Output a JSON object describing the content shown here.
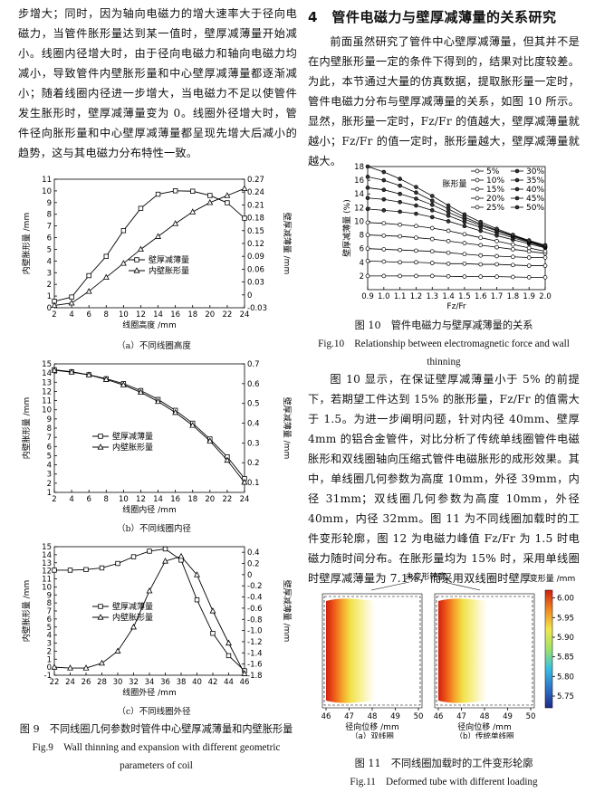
{
  "left": {
    "intro_paragraph": "步增大；同时，因为轴向电磁力的增大速率大于径向电磁力，当管件胀形量达到某一值时，壁厚减薄量开始减小。线圈内径增大时，由于径向电磁力和轴向电磁力均减小，导致管件内壁胀形量和中心壁厚减薄量都逐渐减小；随着线圈内径进一步增大，当电磁力不足以使管件发生胀形时，壁厚减薄量变为 0。线圈外径增大时，管件径向胀形量和中心壁厚减薄量都呈现先增大后减小的趋势，这与其电磁力分布特性一致。",
    "sub_a": "（a）不同线圈高度",
    "sub_b": "（b）不同线圈内径",
    "sub_c": "（c）不同线圈外径",
    "fig9_cn": "图 9　不同线圈几何参数时管件中心壁厚减薄量和内壁胀形量",
    "fig9_en": "Fig.9　Wall thinning and expansion with different geometric parameters of coil"
  },
  "right": {
    "section_title": "4　管件电磁力与壁厚减薄量的关系研究",
    "para1": "前面虽然研究了管件中心壁厚减薄量，但其并不是在内壁胀形量一定的条件下得到的，结果对比度较差。为此，本节通过大量的仿真数据，提取胀形量一定时，管件电磁力分布与壁厚减薄量的关系，如图 10 所示。显然，胀形量一定时，Fz/Fr 的值越大，壁厚减薄量就越小；Fz/Fr 的值一定时，胀形量越大，壁厚减薄量就越大。",
    "fig10_cn": "图 10　管件电磁力与壁厚减薄量的关系",
    "fig10_en": "Fig.10　Relationship between electromagnetic force and wall thinning",
    "para2": "图 10 显示，在保证壁厚减薄量小于 5% 的前提下，若期望工件达到 15% 的胀形量，Fz/Fr 的值需大于 1.5。为进一步阐明问题，针对内径 40mm、壁厚 4mm 的铝合金管件，对比分析了传统单线圈管件电磁胀形和双线圈轴向压缩式管件电磁胀形的成形效果。其中，单线圈几何参数为高度 10mm，外径 39mm，内径 31mm；双线圈几何参数为高度 10mm，外径 40mm，内径 32mm。图 11 为不同线圈加载时的工件变形轮廓，图 12 为电磁力峰值 Fz/Fr 为 1.5 时电磁力随时间分布。在胀形量均为 15% 时，采用单线圈时壁厚减薄量为 7.1%，而采用双线圈时壁厚",
    "fig11_top_label": "未变形轮廓",
    "fig11_colorbar_title": "变形量 /mm",
    "fig11_colorbar_ticks": [
      "6.00",
      "5.95",
      "5.90",
      "5.85",
      "5.80",
      "5.75"
    ],
    "fig11_x_ticks": [
      "46",
      "47",
      "48",
      "49",
      "50"
    ],
    "fig11_xlabel": "径向位移 /mm",
    "fig11_sub_a": "（a）双线圈",
    "fig11_sub_b": "（b）传统单线圈",
    "fig11_cn": "图 11　不同线圈加载时的工件变形轮廓",
    "fig11_en": "Fig.11　Deformed tube with different loading"
  },
  "chart_data": [
    {
      "type": "line",
      "id": "fig9a",
      "xlabel": "线圈高度 /mm",
      "ylabel": "内壁胀形量 /mm",
      "y2label": "壁厚减薄量 /mm",
      "xlim": [
        2,
        24
      ],
      "ylim": [
        0,
        11
      ],
      "y2lim": [
        -0.03,
        0.27
      ],
      "xticks": [
        2,
        4,
        6,
        8,
        10,
        12,
        14,
        16,
        18,
        20,
        22,
        24
      ],
      "yticks": [
        0,
        1,
        2,
        3,
        4,
        5,
        6,
        7,
        8,
        9,
        10,
        11
      ],
      "y2ticks": [
        "0.27",
        "0.24",
        "0.21",
        "0.18",
        "0.15",
        "0.12",
        "0.09",
        "0.06",
        "0.03",
        "0",
        "-0.03"
      ],
      "legend_loc": "center-right",
      "series": [
        {
          "name": "壁厚减薄量",
          "marker": "square",
          "axis": "y2",
          "x": [
            2,
            4,
            6,
            8,
            10,
            12,
            14,
            16,
            18,
            20,
            22,
            24
          ],
          "values": [
            -0.015,
            -0.005,
            0.045,
            0.09,
            0.15,
            0.202,
            0.235,
            0.243,
            0.242,
            0.232,
            0.215,
            0.179
          ]
        },
        {
          "name": "内壁胀形量",
          "marker": "triangle",
          "axis": "y",
          "x": [
            2,
            4,
            6,
            8,
            10,
            12,
            14,
            16,
            18,
            20,
            22,
            24
          ],
          "values": [
            0.2,
            0.4,
            1.4,
            2.6,
            3.8,
            5.0,
            6.1,
            7.2,
            8.2,
            9.0,
            9.6,
            10.2
          ]
        }
      ]
    },
    {
      "type": "line",
      "id": "fig9b",
      "xlabel": "线圈内径 /mm",
      "ylabel": "内壁胀形量 /mm",
      "y2label": "壁厚减薄量 /mm",
      "xlim": [
        2,
        24
      ],
      "ylim": [
        1,
        15
      ],
      "y2lim": [
        0.05,
        0.7
      ],
      "xticks": [
        2,
        4,
        6,
        8,
        10,
        12,
        14,
        16,
        18,
        20,
        22,
        24
      ],
      "yticks": [
        1,
        2,
        3,
        4,
        5,
        6,
        7,
        8,
        9,
        10,
        11,
        12,
        13,
        14,
        15
      ],
      "y2ticks": [
        "0.7",
        "0.6",
        "0.5",
        "0.4",
        "0.3",
        "0.2",
        "0.1"
      ],
      "legend_loc": "center-left",
      "series": [
        {
          "name": "壁厚减薄量",
          "marker": "square",
          "axis": "y2",
          "x": [
            2,
            4,
            6,
            8,
            10,
            12,
            14,
            16,
            18,
            20,
            22,
            24
          ],
          "values": [
            0.67,
            0.66,
            0.645,
            0.625,
            0.6,
            0.565,
            0.52,
            0.465,
            0.4,
            0.32,
            0.23,
            0.12
          ]
        },
        {
          "name": "内壁胀形量",
          "marker": "triangle",
          "axis": "y",
          "x": [
            2,
            4,
            6,
            8,
            10,
            12,
            14,
            16,
            18,
            20,
            22,
            24
          ],
          "values": [
            14.3,
            14.1,
            13.8,
            13.3,
            12.7,
            11.9,
            10.9,
            9.7,
            8.3,
            6.6,
            4.5,
            2.1
          ]
        }
      ]
    },
    {
      "type": "line",
      "id": "fig9c",
      "xlabel": "线圈外径 /mm",
      "ylabel": "内壁胀形量 /mm",
      "y2label": "壁厚减薄量 /mm",
      "xlim": [
        22,
        46
      ],
      "ylim": [
        -1,
        15
      ],
      "y2lim": [
        -1.8,
        0.5
      ],
      "xticks": [
        22,
        24,
        26,
        28,
        30,
        32,
        34,
        36,
        38,
        40,
        42,
        44,
        46
      ],
      "yticks": [
        -1,
        0,
        1,
        2,
        3,
        4,
        5,
        6,
        7,
        8,
        9,
        10,
        11,
        12,
        13,
        14,
        15
      ],
      "y2ticks": [
        "0.4",
        "0.2",
        "0",
        "-0.2",
        "-0.4",
        "-0.6",
        "-0.8",
        "-1.0",
        "-1.2",
        "-1.4",
        "-1.6",
        "-1.8"
      ],
      "legend_loc": "center-left",
      "series": [
        {
          "name": "壁厚减薄量",
          "marker": "square",
          "axis": "y2",
          "x": [
            22,
            24,
            26,
            28,
            30,
            32,
            34,
            36,
            38,
            40,
            42,
            44,
            46
          ],
          "values": [
            0.08,
            0.08,
            0.09,
            0.12,
            0.2,
            0.32,
            0.42,
            0.46,
            0.26,
            -0.45,
            -1.05,
            -1.45,
            -1.72
          ]
        },
        {
          "name": "内壁胀形量",
          "marker": "triangle",
          "axis": "y",
          "x": [
            22,
            24,
            26,
            28,
            30,
            32,
            34,
            36,
            38,
            40,
            42,
            44,
            46
          ],
          "values": [
            0.0,
            -0.1,
            -0.1,
            0.5,
            2.0,
            5.0,
            9.5,
            13.2,
            13.8,
            11.5,
            7.0,
            3.0,
            -0.8
          ]
        }
      ]
    },
    {
      "type": "line",
      "id": "fig10",
      "xlabel": "Fz/Fr",
      "ylabel": "壁厚减薄量 (%)",
      "legend_title": "胀形量",
      "xlim": [
        0.9,
        2.0
      ],
      "ylim": [
        0,
        18
      ],
      "xticks": [
        "0.9",
        "1.0",
        "1.1",
        "1.2",
        "1.3",
        "1.4",
        "1.5",
        "1.6",
        "1.7",
        "1.8",
        "1.9",
        "2.0"
      ],
      "yticks": [
        2,
        4,
        6,
        8,
        10,
        12,
        14,
        16,
        18
      ],
      "legend_loc": "top-right",
      "x": [
        0.9,
        1.0,
        1.1,
        1.2,
        1.3,
        1.4,
        1.5,
        1.6,
        1.7,
        1.8,
        1.9,
        2.0
      ],
      "series": [
        {
          "name": "5%",
          "marker": "circle-open",
          "values": [
            2.0,
            2.0,
            2.0,
            2.0,
            2.0,
            1.95,
            1.9,
            1.9,
            1.9,
            1.85,
            1.8,
            1.8
          ]
        },
        {
          "name": "10%",
          "marker": "circle-open",
          "values": [
            4.2,
            4.1,
            4.0,
            4.0,
            3.9,
            3.8,
            3.8,
            3.7,
            3.7,
            3.6,
            3.5,
            3.5
          ]
        },
        {
          "name": "15%",
          "marker": "circle-open",
          "values": [
            6.0,
            5.9,
            5.8,
            5.7,
            5.6,
            5.4,
            5.2,
            5.0,
            4.9,
            4.8,
            4.7,
            4.7
          ]
        },
        {
          "name": "20%",
          "marker": "circle-open",
          "values": [
            8.0,
            7.9,
            7.8,
            7.6,
            7.4,
            7.1,
            6.8,
            6.5,
            6.2,
            5.9,
            5.6,
            5.3
          ]
        },
        {
          "name": "25%",
          "marker": "circle-open",
          "values": [
            9.8,
            9.7,
            9.5,
            9.3,
            9.0,
            8.6,
            8.1,
            7.6,
            7.1,
            6.6,
            6.1,
            5.6
          ]
        },
        {
          "name": "30%",
          "marker": "circle-filled",
          "values": [
            11.8,
            11.6,
            11.4,
            11.1,
            10.6,
            10.0,
            9.3,
            8.6,
            7.9,
            7.3,
            6.7,
            6.1
          ]
        },
        {
          "name": "35%",
          "marker": "circle-filled",
          "values": [
            13.4,
            13.2,
            12.8,
            12.3,
            11.6,
            10.8,
            9.9,
            9.1,
            8.3,
            7.6,
            6.9,
            6.2
          ]
        },
        {
          "name": "40%",
          "marker": "circle-filled",
          "values": [
            14.9,
            14.6,
            14.0,
            13.3,
            12.4,
            11.3,
            10.3,
            9.4,
            8.6,
            7.8,
            7.0,
            6.3
          ]
        },
        {
          "name": "45%",
          "marker": "circle-filled",
          "values": [
            16.5,
            16.0,
            15.2,
            14.2,
            13.0,
            11.8,
            10.6,
            9.6,
            8.7,
            7.9,
            7.1,
            6.4
          ]
        },
        {
          "name": "50%",
          "marker": "circle-filled",
          "values": [
            18.0,
            17.2,
            16.2,
            15.0,
            13.7,
            12.3,
            11.0,
            9.9,
            8.9,
            8.0,
            7.2,
            6.5
          ]
        }
      ]
    },
    {
      "type": "heatmap",
      "id": "fig11",
      "colorbar": {
        "min": 5.72,
        "max": 6.02,
        "colors": [
          "#1f2a8a",
          "#2f73c8",
          "#38c0e0",
          "#9ee36a",
          "#f2e64a",
          "#f08a22",
          "#d02010"
        ]
      }
    }
  ]
}
